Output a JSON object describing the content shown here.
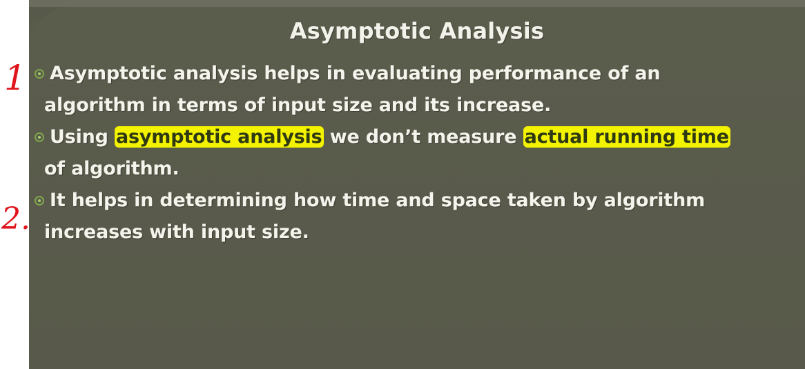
{
  "slide": {
    "title": "Asymptotic Analysis",
    "bullets": [
      {
        "line1": "Asymptotic analysis helps in evaluating performance of an",
        "line2": "algorithm in terms of input size and its increase."
      },
      {
        "prefix": "Using ",
        "highlight1": "asymptotic analysis",
        "middle": " we don’t measure ",
        "highlight2": "actual running time",
        "line2": "of algorithm."
      },
      {
        "line1": "It helps in determining how time and space taken by algorithm",
        "line2": "increases with input size."
      }
    ],
    "highlight_color": "#f3f200",
    "bullet_color": "#7ea64a",
    "background_color": "#58594a"
  },
  "annotations": {
    "mark1": "1.",
    "mark2": "2.",
    "ink_color": "#e0141a"
  }
}
